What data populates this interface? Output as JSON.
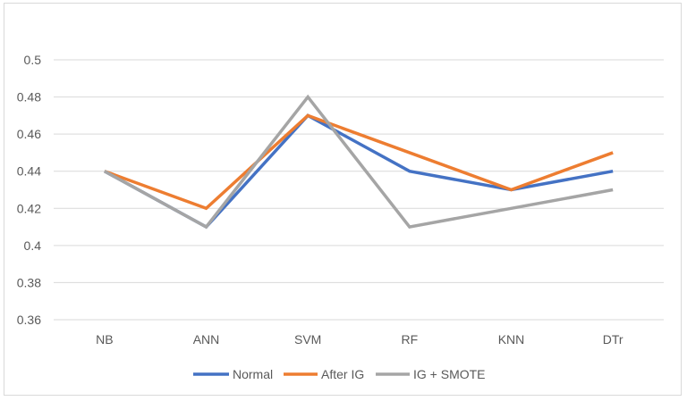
{
  "chart_data": {
    "type": "line",
    "categories": [
      "NB",
      "ANN",
      "SVM",
      "RF",
      "KNN",
      "DTr"
    ],
    "series": [
      {
        "name": "Normal",
        "color": "#4472C4",
        "values": [
          0.44,
          0.41,
          0.47,
          0.44,
          0.43,
          0.44
        ]
      },
      {
        "name": "After IG",
        "color": "#ED7D31",
        "values": [
          0.44,
          0.42,
          0.47,
          0.45,
          0.43,
          0.45
        ]
      },
      {
        "name": "IG + SMOTE",
        "color": "#A5A5A5",
        "values": [
          0.44,
          0.41,
          0.48,
          0.41,
          0.42,
          0.43
        ]
      }
    ],
    "yticks": [
      "0.36",
      "0.38",
      "0.4",
      "0.42",
      "0.44",
      "0.46",
      "0.48",
      "0.5"
    ],
    "ylim": [
      0.36,
      0.5
    ],
    "grid": true,
    "legend": "bottom"
  }
}
